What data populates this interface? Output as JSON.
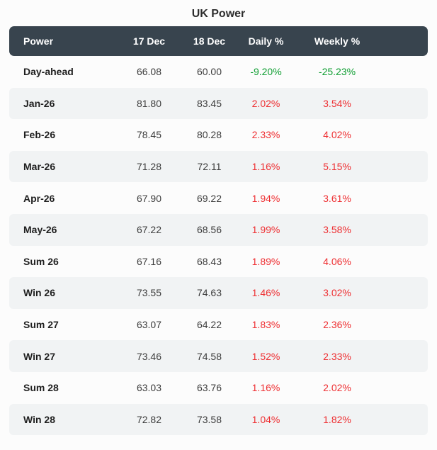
{
  "title": "UK Power",
  "colors": {
    "header_bg": "#38444e",
    "decrease_green": "#0f9e32",
    "increase_red": "#ee2e31",
    "stripe": "#f1f3f4"
  },
  "table": {
    "columns": [
      "Power",
      "17 Dec",
      "18 Dec",
      "Daily %",
      "Weekly %"
    ],
    "rows": [
      {
        "label": "Day-ahead",
        "v17": "66.08",
        "v18": "60.00",
        "daily": "-9.20%",
        "weekly": "-25.23%",
        "daily_cls": "chg-neg",
        "weekly_cls": "chg-neg"
      },
      {
        "label": "Jan-26",
        "v17": "81.80",
        "v18": "83.45",
        "daily": "2.02%",
        "weekly": "3.54%",
        "daily_cls": "chg-pos",
        "weekly_cls": "chg-pos"
      },
      {
        "label": "Feb-26",
        "v17": "78.45",
        "v18": "80.28",
        "daily": "2.33%",
        "weekly": "4.02%",
        "daily_cls": "chg-pos",
        "weekly_cls": "chg-pos"
      },
      {
        "label": "Mar-26",
        "v17": "71.28",
        "v18": "72.11",
        "daily": "1.16%",
        "weekly": "5.15%",
        "daily_cls": "chg-pos",
        "weekly_cls": "chg-pos"
      },
      {
        "label": "Apr-26",
        "v17": "67.90",
        "v18": "69.22",
        "daily": "1.94%",
        "weekly": "3.61%",
        "daily_cls": "chg-pos",
        "weekly_cls": "chg-pos"
      },
      {
        "label": "May-26",
        "v17": "67.22",
        "v18": "68.56",
        "daily": "1.99%",
        "weekly": "3.58%",
        "daily_cls": "chg-pos",
        "weekly_cls": "chg-pos"
      },
      {
        "label": "Sum 26",
        "v17": "67.16",
        "v18": "68.43",
        "daily": "1.89%",
        "weekly": "4.06%",
        "daily_cls": "chg-pos",
        "weekly_cls": "chg-pos"
      },
      {
        "label": "Win 26",
        "v17": "73.55",
        "v18": "74.63",
        "daily": "1.46%",
        "weekly": "3.02%",
        "daily_cls": "chg-pos",
        "weekly_cls": "chg-pos"
      },
      {
        "label": "Sum 27",
        "v17": "63.07",
        "v18": "64.22",
        "daily": "1.83%",
        "weekly": "2.36%",
        "daily_cls": "chg-pos",
        "weekly_cls": "chg-pos"
      },
      {
        "label": "Win 27",
        "v17": "73.46",
        "v18": "74.58",
        "daily": "1.52%",
        "weekly": "2.33%",
        "daily_cls": "chg-pos",
        "weekly_cls": "chg-pos"
      },
      {
        "label": "Sum 28",
        "v17": "63.03",
        "v18": "63.76",
        "daily": "1.16%",
        "weekly": "2.02%",
        "daily_cls": "chg-pos",
        "weekly_cls": "chg-pos"
      },
      {
        "label": "Win 28",
        "v17": "72.82",
        "v18": "73.58",
        "daily": "1.04%",
        "weekly": "1.82%",
        "daily_cls": "chg-pos",
        "weekly_cls": "chg-pos"
      }
    ]
  },
  "chart_data": {
    "type": "table",
    "title": "UK Power",
    "columns": [
      "Power",
      "17 Dec",
      "18 Dec",
      "Daily %",
      "Weekly %"
    ],
    "rows": [
      [
        "Day-ahead",
        66.08,
        60.0,
        -9.2,
        -25.23
      ],
      [
        "Jan-26",
        81.8,
        83.45,
        2.02,
        3.54
      ],
      [
        "Feb-26",
        78.45,
        80.28,
        2.33,
        4.02
      ],
      [
        "Mar-26",
        71.28,
        72.11,
        1.16,
        5.15
      ],
      [
        "Apr-26",
        67.9,
        69.22,
        1.94,
        3.61
      ],
      [
        "May-26",
        67.22,
        68.56,
        1.99,
        3.58
      ],
      [
        "Sum 26",
        67.16,
        68.43,
        1.89,
        4.06
      ],
      [
        "Win 26",
        73.55,
        74.63,
        1.46,
        3.02
      ],
      [
        "Sum 27",
        63.07,
        64.22,
        1.83,
        2.36
      ],
      [
        "Win 27",
        73.46,
        74.58,
        1.52,
        2.33
      ],
      [
        "Sum 28",
        63.03,
        63.76,
        1.16,
        2.02
      ],
      [
        "Win 28",
        72.82,
        73.58,
        1.04,
        1.82
      ]
    ],
    "notes": "Percent columns: negative values rendered green, positive values red"
  }
}
